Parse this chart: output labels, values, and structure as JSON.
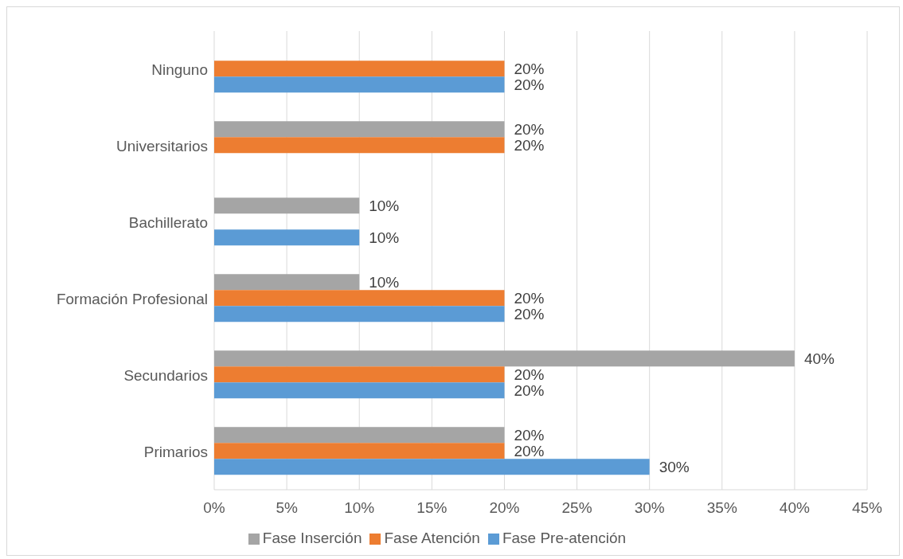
{
  "chart_data": {
    "type": "bar",
    "orientation": "horizontal",
    "categories": [
      "Ninguno",
      "Universitarios",
      "Bachillerato",
      "Formación Profesional",
      "Secundarios",
      "Primarios"
    ],
    "series": [
      {
        "name": "Fase Inserción",
        "color": "#a5a5a5",
        "values": [
          null,
          20,
          10,
          10,
          40,
          20
        ],
        "value_labels": [
          null,
          "20%",
          "10%",
          "10%",
          "40%",
          "20%"
        ]
      },
      {
        "name": "Fase Atención",
        "color": "#ed7d31",
        "values": [
          20,
          20,
          null,
          20,
          20,
          20
        ],
        "value_labels": [
          "20%",
          "20%",
          null,
          "20%",
          "20%",
          "20%"
        ]
      },
      {
        "name": "Fase Pre-atención",
        "color": "#5b9bd5",
        "values": [
          20,
          null,
          10,
          20,
          20,
          30
        ],
        "value_labels": [
          "20%",
          null,
          "10%",
          "20%",
          "20%",
          "30%"
        ]
      }
    ],
    "xlim": [
      0,
      45
    ],
    "xticks": [
      {
        "value": 0,
        "label": "0%"
      },
      {
        "value": 5,
        "label": "5%"
      },
      {
        "value": 10,
        "label": "10%"
      },
      {
        "value": 15,
        "label": "15%"
      },
      {
        "value": 20,
        "label": "20%"
      },
      {
        "value": 25,
        "label": "25%"
      },
      {
        "value": 30,
        "label": "30%"
      },
      {
        "value": 35,
        "label": "35%"
      },
      {
        "value": 40,
        "label": "40%"
      },
      {
        "value": 45,
        "label": "45%"
      }
    ],
    "grid": "x",
    "legend": "bottom"
  }
}
